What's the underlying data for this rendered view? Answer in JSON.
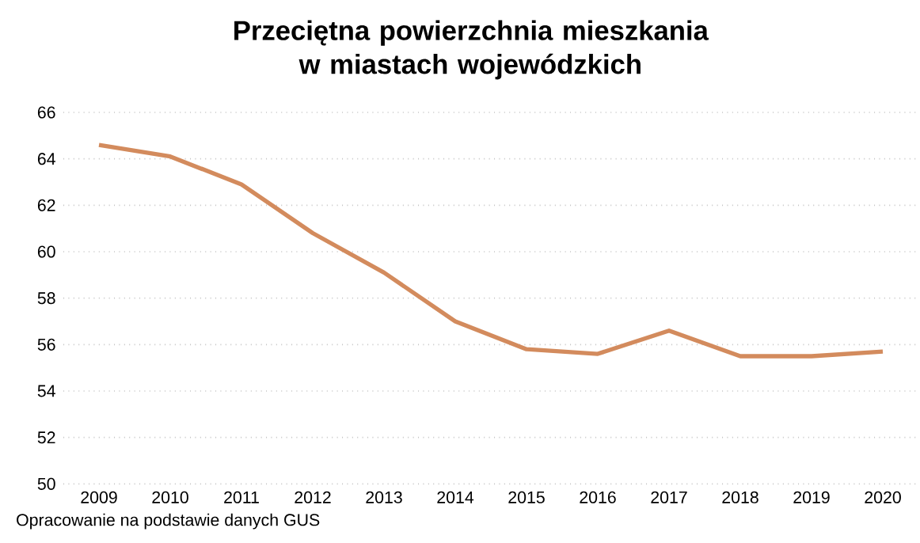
{
  "chart_data": {
    "type": "line",
    "title": "Przeciętna powierzchnia mieszkania w miastach wojewódzkich",
    "categories": [
      "2009",
      "2010",
      "2011",
      "2012",
      "2013",
      "2014",
      "2015",
      "2016",
      "2017",
      "2018",
      "2019",
      "2020"
    ],
    "values": [
      64.6,
      64.1,
      62.9,
      60.8,
      59.1,
      57.0,
      55.8,
      55.6,
      56.6,
      55.5,
      55.5,
      55.7
    ],
    "color": "#d38b5d",
    "ylim": [
      50,
      66
    ],
    "yticks": [
      50,
      52,
      54,
      56,
      58,
      60,
      62,
      64,
      66
    ],
    "grid": "y",
    "marker": "none",
    "line_style": "solid",
    "annotations": [
      "Opracowanie na podstawie danych GUS"
    ]
  }
}
